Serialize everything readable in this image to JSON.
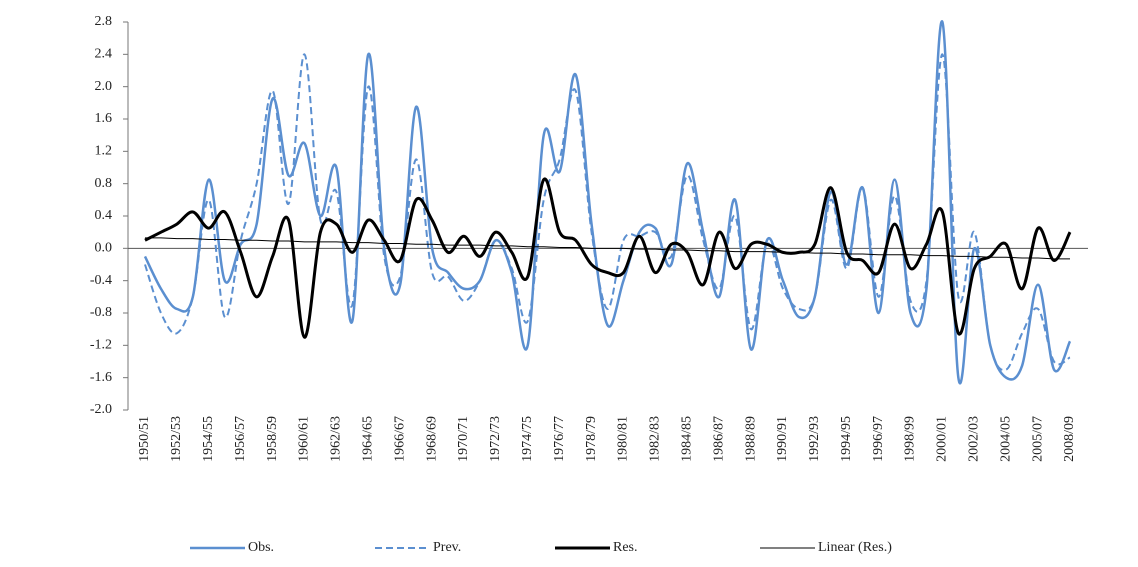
{
  "chart_data": {
    "type": "line",
    "categories": [
      "1950/51",
      null,
      "1952/53",
      null,
      "1954/55",
      null,
      "1956/57",
      null,
      "1958/59",
      null,
      "1960/61",
      null,
      "1962/63",
      null,
      "1964/65",
      null,
      "1966/67",
      null,
      "1968/69",
      null,
      "1970/71",
      null,
      "1972/73",
      null,
      "1974/75",
      null,
      "1976/77",
      null,
      "1978/79",
      null,
      "1980/81",
      null,
      "1982/83",
      null,
      "1984/85",
      null,
      "1986/87",
      null,
      "1988/89",
      null,
      "1990/91",
      null,
      "1992/93",
      null,
      "1994/95",
      null,
      "1996/97",
      null,
      "1998/99",
      null,
      "2000/01",
      null,
      "2002/03",
      null,
      "2004/05",
      null,
      "2005/07",
      null,
      "2008/09"
    ],
    "series": [
      {
        "name": "Obs.",
        "color": "#5b8fd0",
        "width": 2.5,
        "dash": false,
        "smooth": true,
        "values": [
          -0.1,
          -0.5,
          -0.75,
          -0.6,
          0.85,
          -0.4,
          0.05,
          0.3,
          1.85,
          0.9,
          1.3,
          0.4,
          1.0,
          -0.9,
          2.4,
          0.0,
          -0.45,
          1.75,
          0.0,
          -0.3,
          -0.5,
          -0.4,
          0.1,
          -0.3,
          -1.2,
          1.4,
          0.95,
          2.15,
          0.3,
          -0.95,
          -0.4,
          0.2,
          0.25,
          -0.2,
          1.05,
          0.2,
          -0.6,
          0.6,
          -1.25,
          0.1,
          -0.4,
          -0.85,
          -0.6,
          0.7,
          -0.2,
          0.75,
          -0.8,
          0.85,
          -0.8,
          -0.5,
          2.8,
          -1.6,
          0.0,
          -1.2,
          -1.6,
          -1.45,
          -0.45,
          -1.5,
          -1.15
        ]
      },
      {
        "name": "Prev.",
        "color": "#5b8fd0",
        "width": 2,
        "dash": true,
        "smooth": true,
        "values": [
          -0.2,
          -0.8,
          -1.05,
          -0.6,
          0.6,
          -0.85,
          0.1,
          0.8,
          1.95,
          0.55,
          2.4,
          0.35,
          0.7,
          -0.7,
          2.0,
          -0.1,
          -0.35,
          1.1,
          -0.3,
          -0.35,
          -0.65,
          -0.4,
          0.1,
          -0.25,
          -0.9,
          0.6,
          1.1,
          1.95,
          0.2,
          -0.75,
          0.1,
          0.15,
          0.2,
          -0.1,
          0.9,
          0.1,
          -0.5,
          0.4,
          -1.0,
          0.05,
          -0.5,
          -0.75,
          -0.6,
          0.6,
          -0.25,
          0.75,
          -0.6,
          0.65,
          -0.65,
          -0.4,
          2.4,
          -0.6,
          0.2,
          -1.2,
          -1.5,
          -1.05,
          -0.75,
          -1.4,
          -1.35
        ]
      },
      {
        "name": "Res.",
        "color": "#000000",
        "width": 3,
        "dash": false,
        "smooth": true,
        "values": [
          0.1,
          0.2,
          0.3,
          0.45,
          0.25,
          0.45,
          -0.05,
          -0.6,
          -0.1,
          0.35,
          -1.1,
          0.2,
          0.3,
          -0.05,
          0.35,
          0.1,
          -0.15,
          0.6,
          0.35,
          -0.05,
          0.15,
          -0.1,
          0.2,
          -0.05,
          -0.35,
          0.85,
          0.2,
          0.1,
          -0.2,
          -0.3,
          -0.3,
          0.15,
          -0.3,
          0.05,
          -0.05,
          -0.45,
          0.2,
          -0.25,
          0.05,
          0.05,
          -0.05,
          -0.05,
          0.05,
          0.75,
          -0.05,
          -0.15,
          -0.3,
          0.3,
          -0.25,
          0.05,
          0.45,
          -1.05,
          -0.25,
          -0.1,
          0.05,
          -0.5,
          0.25,
          -0.15,
          0.2
        ]
      },
      {
        "name": "Linear (Res.)",
        "color": "#000000",
        "width": 1,
        "dash": false,
        "smooth": false,
        "values": [
          0.13,
          0.13,
          0.12,
          0.12,
          0.11,
          0.11,
          0.1,
          0.1,
          0.09,
          0.09,
          0.08,
          0.08,
          0.08,
          0.07,
          0.07,
          0.06,
          0.06,
          0.05,
          0.05,
          0.04,
          0.04,
          0.04,
          0.03,
          0.03,
          0.02,
          0.02,
          0.01,
          0.01,
          0.0,
          0.0,
          0.0,
          -0.01,
          -0.01,
          -0.02,
          -0.02,
          -0.03,
          -0.03,
          -0.04,
          -0.04,
          -0.04,
          -0.05,
          -0.05,
          -0.06,
          -0.06,
          -0.07,
          -0.07,
          -0.08,
          -0.08,
          -0.08,
          -0.09,
          -0.09,
          -0.1,
          -0.1,
          -0.11,
          -0.11,
          -0.12,
          -0.12,
          -0.13,
          -0.13
        ]
      }
    ],
    "ylim": [
      -2.0,
      2.8
    ],
    "yticks": [
      {
        "value": -2.0,
        "label": "-2.0"
      },
      -1.6,
      -1.2,
      -0.8,
      -0.4,
      {
        "value": 0,
        "label": "0.0"
      },
      0.4,
      0.8,
      1.2,
      1.6,
      {
        "value": 2.0,
        "label": "2.0"
      },
      2.4,
      2.8
    ],
    "legend": "bottom"
  }
}
